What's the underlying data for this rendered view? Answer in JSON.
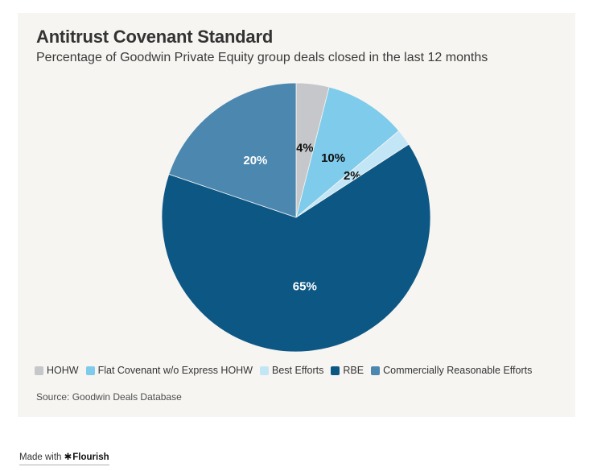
{
  "header": {
    "title": "Antitrust Covenant Standard",
    "subtitle": "Percentage of Goodwin Private Equity group deals closed in the last 12 months"
  },
  "chart_data": {
    "type": "pie",
    "title": "Antitrust Covenant Standard",
    "subtitle": "Percentage of Goodwin Private Equity group deals closed in the last 12 months",
    "direction": "clockwise",
    "start_angle_deg": 0,
    "label_radius_fraction": 0.52,
    "slices": [
      {
        "label": "HOHW",
        "value": 4,
        "display": "4%",
        "color": "#c5c7ca",
        "label_color": "#111111"
      },
      {
        "label": "Flat Covenant w/o Express HOHW",
        "value": 10,
        "display": "10%",
        "color": "#7ecbeb",
        "label_color": "#111111"
      },
      {
        "label": "Best Efforts",
        "value": 2,
        "display": "2%",
        "color": "#c2e6f6",
        "label_color": "#111111"
      },
      {
        "label": "RBE",
        "value": 65,
        "display": "65%",
        "color": "#0d5785",
        "label_color": "#ffffff"
      },
      {
        "label": "Commercially Reasonable Efforts",
        "value": 20,
        "display": "20%",
        "color": "#4b87af",
        "label_color": "#ffffff"
      }
    ],
    "legend_position": "bottom-left",
    "background_color": "#f6f5f2"
  },
  "source": {
    "text": "Source: Goodwin Deals Database"
  },
  "credit": {
    "prefix": "Made with ",
    "mark": "✱",
    "brand": "Flourish"
  }
}
